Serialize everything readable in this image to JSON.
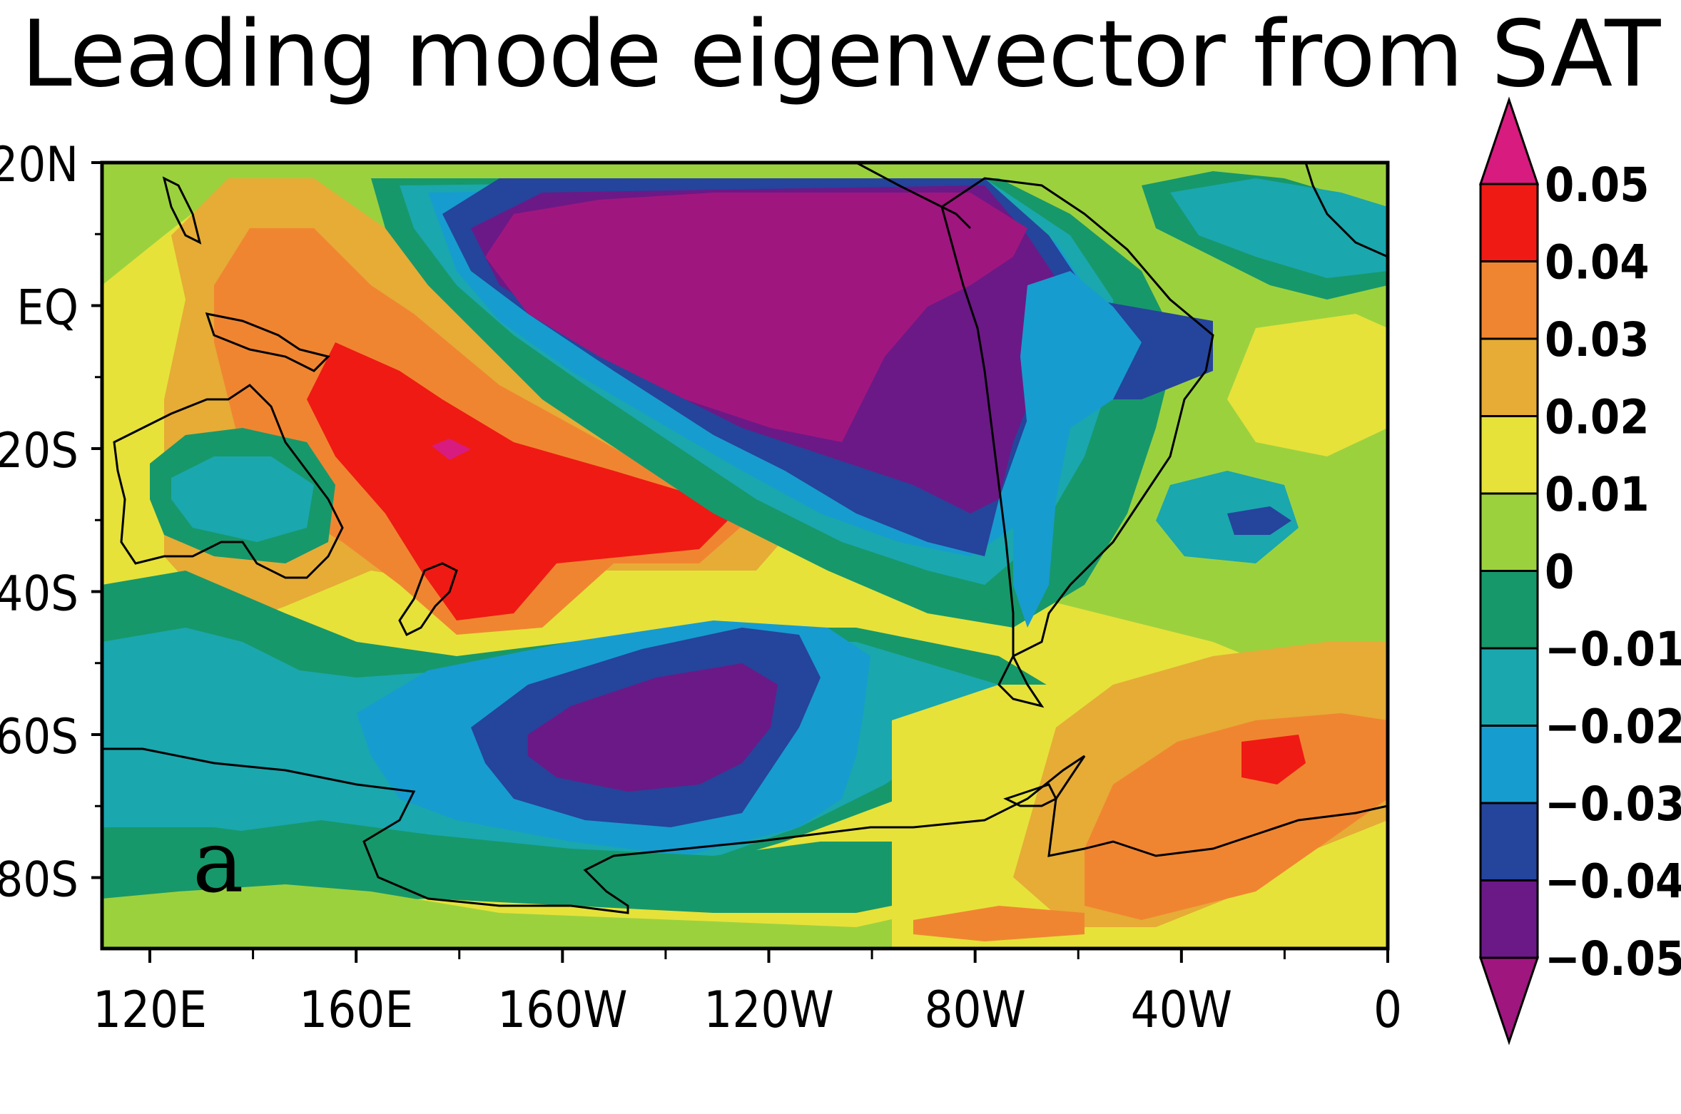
{
  "title": "Leading mode eigenvector from SAT",
  "panel_label": "a",
  "map": {
    "lon_labels": [
      "120E",
      "160E",
      "160W",
      "120W",
      "80W",
      "40W",
      "0"
    ],
    "lat_labels": [
      "20N",
      "EQ",
      "20S",
      "40S",
      "60S",
      "80S"
    ],
    "lon_range": [
      "120E",
      "0"
    ],
    "lat_range": [
      "20N",
      "90S"
    ]
  },
  "colorbar": {
    "labels": [
      "0.05",
      "0.04",
      "0.03",
      "0.02",
      "0.01",
      "0",
      "−0.01",
      "−0.02",
      "−0.03",
      "−0.04",
      "−0.05"
    ],
    "colors": [
      "#d81b7f",
      "#ef1a14",
      "#f08531",
      "#e6ac36",
      "#e6e23a",
      "#9cd13e",
      "#17986a",
      "#1aa7ae",
      "#179ccf",
      "#25449c",
      "#6b1986",
      "#a0167f"
    ]
  }
}
